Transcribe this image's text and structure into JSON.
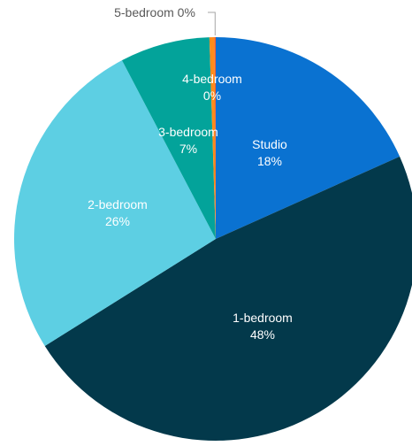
{
  "chart_data": {
    "type": "pie",
    "title": "",
    "categories": [
      "Studio",
      "1-bedroom",
      "2-bedroom",
      "3-bedroom",
      "4-bedroom",
      "5-bedroom"
    ],
    "values": [
      18.3,
      47.8,
      26.2,
      7.2,
      0.4,
      0.1
    ],
    "display_labels": [
      "18%",
      "48%",
      "26%",
      "7%",
      "0%",
      "0%"
    ],
    "colors": [
      "#0a72d1",
      "#03394b",
      "#5dcfe3",
      "#03a39a",
      "#ff8c1a",
      "#ff5e2a"
    ],
    "start_angle_deg": 0,
    "direction": "clockwise",
    "legend": "none",
    "leader_line_color": "#a6a6a6"
  }
}
